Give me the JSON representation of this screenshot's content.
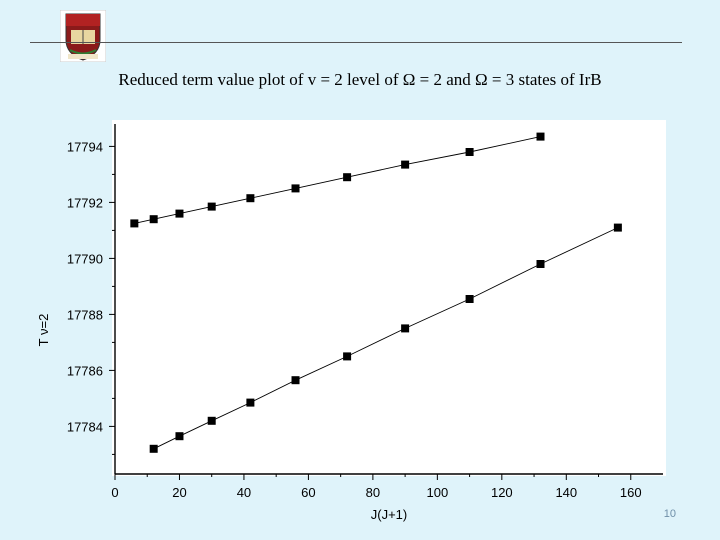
{
  "slide": {
    "title": "Reduced term value plot of v = 2 level of Ω = 2 and Ω = 3 states of IrB",
    "page_number": "10"
  },
  "logo": {
    "icon": "university-crest-icon"
  },
  "colors": {
    "background": "#dff3fa",
    "plot_background": "#ffffff",
    "marker": "#000000"
  },
  "chart_data": {
    "type": "scatter",
    "title": "",
    "xlabel": "J(J+1)",
    "ylabel": "T ν=2 ",
    "xlim": [
      0,
      170
    ],
    "ylim": [
      17782.3,
      17794.8
    ],
    "x_ticks": [
      0,
      20,
      40,
      60,
      80,
      100,
      120,
      140,
      160
    ],
    "y_ticks": [
      17784,
      17786,
      17788,
      17790,
      17792,
      17794
    ],
    "grid": false,
    "legend": "none",
    "series": [
      {
        "x": [
          6,
          12,
          20,
          30,
          42,
          56,
          72,
          90,
          110,
          132
        ],
        "y": [
          17791.25,
          17791.4,
          17791.6,
          17791.85,
          17792.15,
          17792.5,
          17792.9,
          17793.35,
          17793.8,
          17794.35
        ]
      },
      {
        "x": [
          12,
          20,
          30,
          42,
          56,
          72,
          90,
          110,
          132,
          156
        ],
        "y": [
          17783.2,
          17783.65,
          17784.2,
          17784.85,
          17785.65,
          17786.5,
          17787.5,
          17788.55,
          17789.8,
          17791.1
        ]
      }
    ]
  }
}
